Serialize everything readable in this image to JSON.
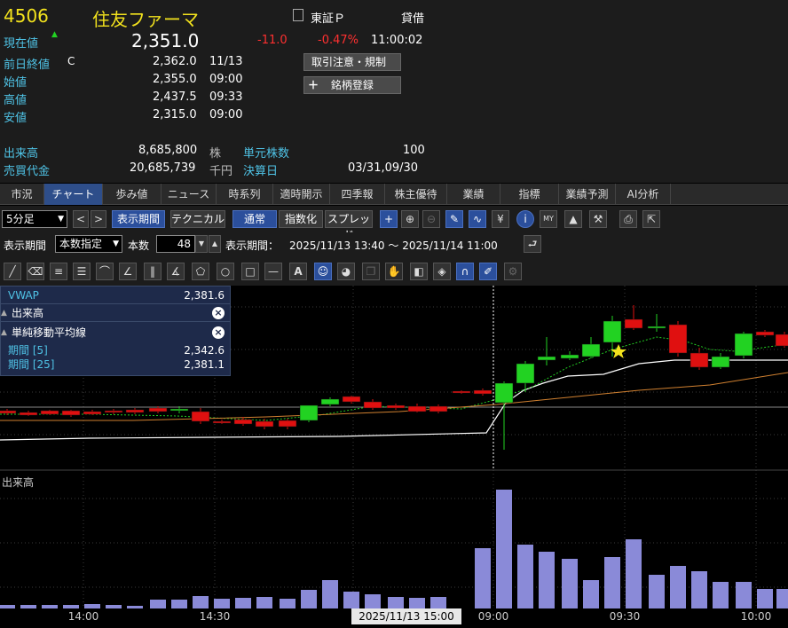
{
  "quote": {
    "code": "4506",
    "name": "住友ファーマ",
    "market": "東証Ｐ",
    "lending": "貸借",
    "current_label": "現在値",
    "current_arrow": "▲",
    "current_value": "2,351.0",
    "change": "-11.0",
    "change_pct": "-0.47%",
    "current_time": "11:00:02",
    "prev_close_label": "前日終値",
    "prev_close_flag": "C",
    "prev_close_value": "2,362.0",
    "prev_close_date": "11/13",
    "open_label": "始値",
    "open_value": "2,355.0",
    "open_time": "09:00",
    "high_label": "高値",
    "high_value": "2,437.5",
    "high_time": "09:33",
    "low_label": "安値",
    "low_value": "2,315.0",
    "low_time": "09:00",
    "volume_label": "出来高",
    "volume_value": "8,685,800",
    "volume_unit": "株",
    "unit_shares_label": "単元株数",
    "unit_shares_value": "100",
    "turnover_label": "売買代金",
    "turnover_value": "20,685,739",
    "turnover_unit": "千円",
    "fiscal_label": "決算日",
    "fiscal_value": "03/31,09/30",
    "notice_button": "取引注意・規制",
    "register_button": "銘柄登録",
    "register_plus": "＋"
  },
  "tabs": [
    {
      "label": "市況"
    },
    {
      "label": "チャート"
    },
    {
      "label": "歩み値"
    },
    {
      "label": "ニュース"
    },
    {
      "label": "時系列"
    },
    {
      "label": "適時開示"
    },
    {
      "label": "四季報"
    },
    {
      "label": "株主優待"
    },
    {
      "label": "業績"
    },
    {
      "label": "指標"
    },
    {
      "label": "業績予測"
    },
    {
      "label": "AI分析"
    }
  ],
  "toolbar": {
    "interval": "5分足",
    "interval_arrow": "▼",
    "prev": "<",
    "next": ">",
    "period_button": "表示期間",
    "technical_button": "テクニカル",
    "normal_button": "通常",
    "index_button": "指数化",
    "spread_button": "スプレッド",
    "period_label": "表示期間",
    "period_mode": "本数指定",
    "period_mode_arrow": "▼",
    "count_label": "本数",
    "count_value": "48",
    "period_range_label": "表示期間：",
    "period_range": "2025/11/13 13:40 ～ 2025/11/14 11:00",
    "return_icon": "⮐"
  },
  "legend": {
    "vwap_label": "VWAP",
    "vwap_value": "2,381.6",
    "volume_label": "出来高",
    "sma_label": "単純移動平均線",
    "period5_label": "期間 [5]",
    "period5_value": "2,342.6",
    "period25_label": "期間 [25]",
    "period25_value": "2,381.1",
    "close": "×"
  },
  "chart_data": {
    "type": "candlestick",
    "volume_pane_label": "出来高",
    "x_ticks": [
      "14:00",
      "14:30",
      "09:00",
      "09:30",
      "10:00"
    ],
    "cursor_label": "2025/11/13 15:00",
    "colors": {
      "up": "#22d222",
      "down": "#e01010",
      "volume": "#8a8ad8",
      "vwap": "#ffffff",
      "sma5": "#22cc22",
      "sma25": "#d08030"
    }
  }
}
